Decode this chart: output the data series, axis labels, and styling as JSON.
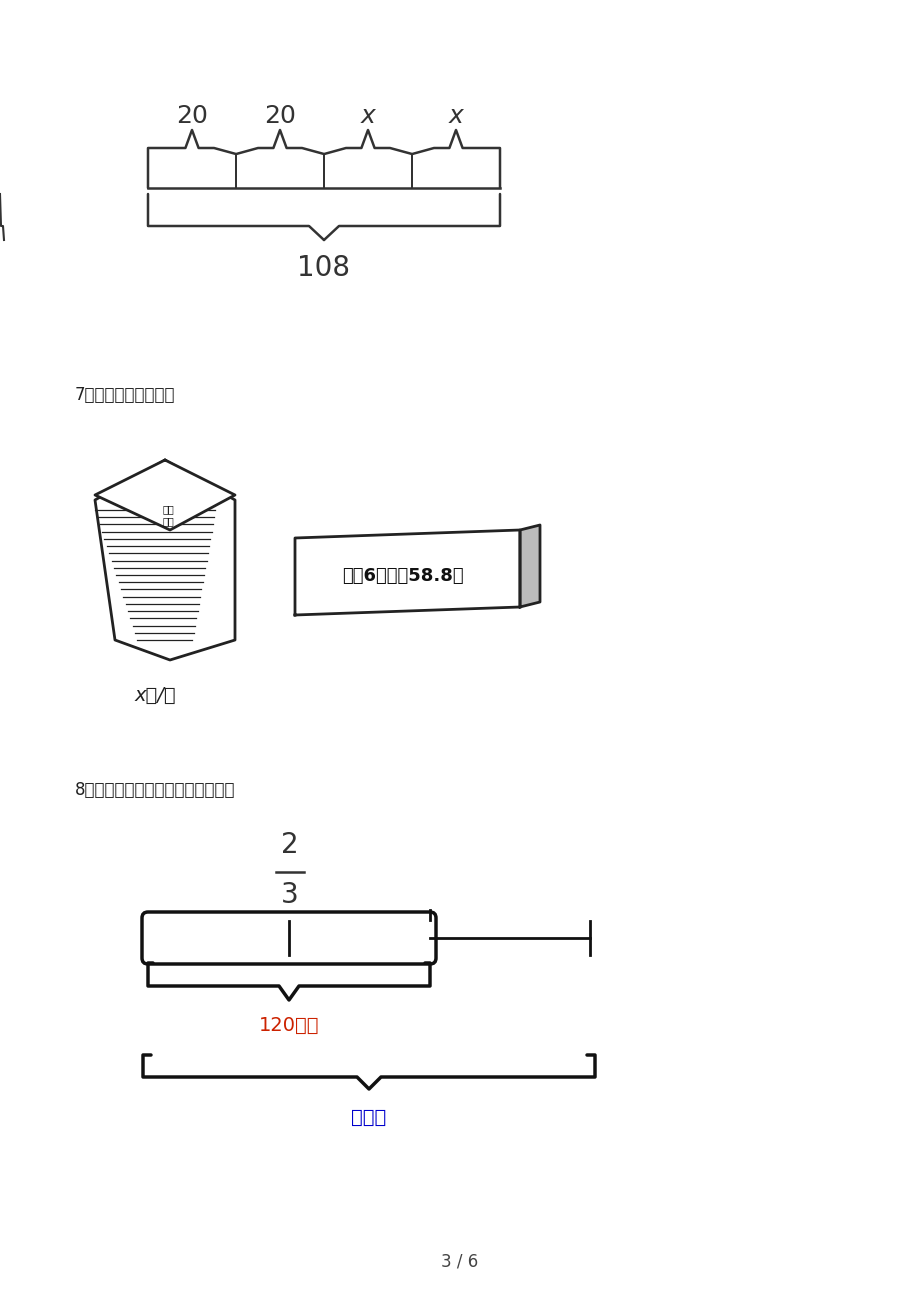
{
  "bg_color": "#ffffff",
  "page_num": "3 / 6",
  "section7_label": "7．看图列方程解答。",
  "section8_label": "8．看图列算式（或方程）并解答。",
  "top_labels": [
    "20",
    "20",
    "x",
    "x"
  ],
  "bottom_label": "108",
  "book_label": "x元/本",
  "price_tag_text": "每套6本，共58.8元",
  "fraction_num": "2",
  "fraction_den": "3",
  "km_label1": "120千米",
  "km_label2": "？千米",
  "km_color1": "#cc2200",
  "km_color2": "#0000cc"
}
